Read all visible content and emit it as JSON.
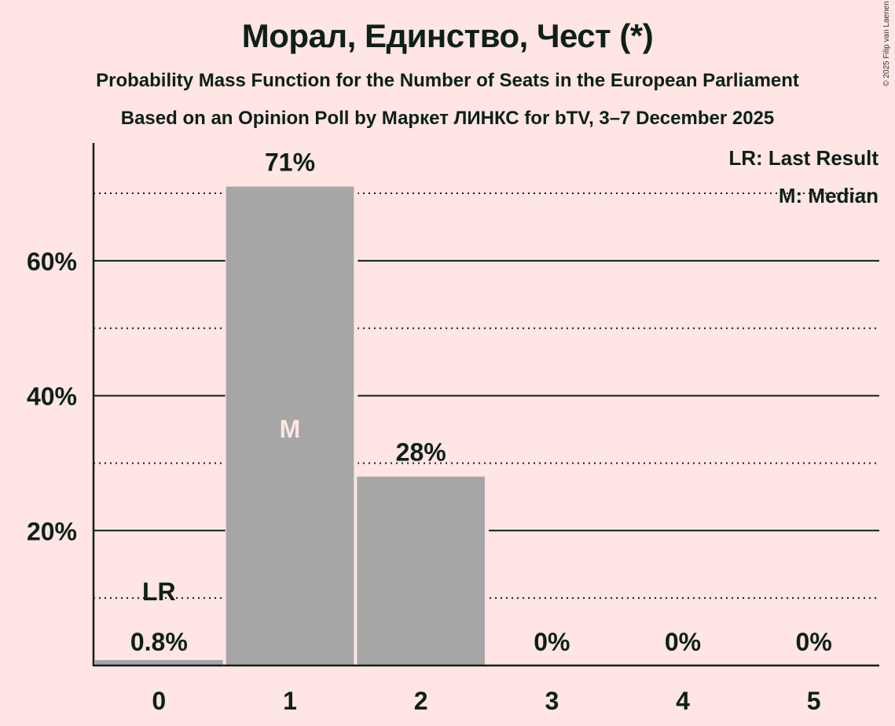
{
  "header": {
    "title": "Морал, Единство, Чест (*)",
    "subtitle": "Probability Mass Function for the Number of Seats in the European Parliament",
    "source": "Based on an Opinion Poll by Маркет ЛИНКС for bTV, 3–7 December 2025",
    "copyright": "© 2025 Filip van Laenen"
  },
  "legend": {
    "lr": "LR: Last Result",
    "m": "M: Median"
  },
  "colors": {
    "background": "#ffe5e4",
    "bar": "#a6a6a6",
    "text": "#0d2018",
    "median_label": "#ffe5e4"
  },
  "chart_data": {
    "type": "bar",
    "title": "Морал, Единство, Чест (*)",
    "subtitle": "Probability Mass Function for the Number of Seats in the European Parliament",
    "xlabel": "",
    "ylabel": "",
    "categories": [
      "0",
      "1",
      "2",
      "3",
      "4",
      "5"
    ],
    "values": [
      0.8,
      71,
      28,
      0,
      0,
      0
    ],
    "value_labels": [
      "0.8%",
      "71%",
      "28%",
      "0%",
      "0%",
      "0%"
    ],
    "ylim": [
      0,
      77
    ],
    "yticks": [
      20,
      40,
      60
    ],
    "ytick_labels": [
      "20%",
      "40%",
      "60%"
    ],
    "minor_gridlines": [
      10,
      30,
      50,
      70
    ],
    "annotations": [
      {
        "category": "0",
        "text": "LR",
        "meaning": "Last Result"
      },
      {
        "category": "1",
        "text": "M",
        "meaning": "Median"
      }
    ],
    "legend_position": "top-right"
  }
}
